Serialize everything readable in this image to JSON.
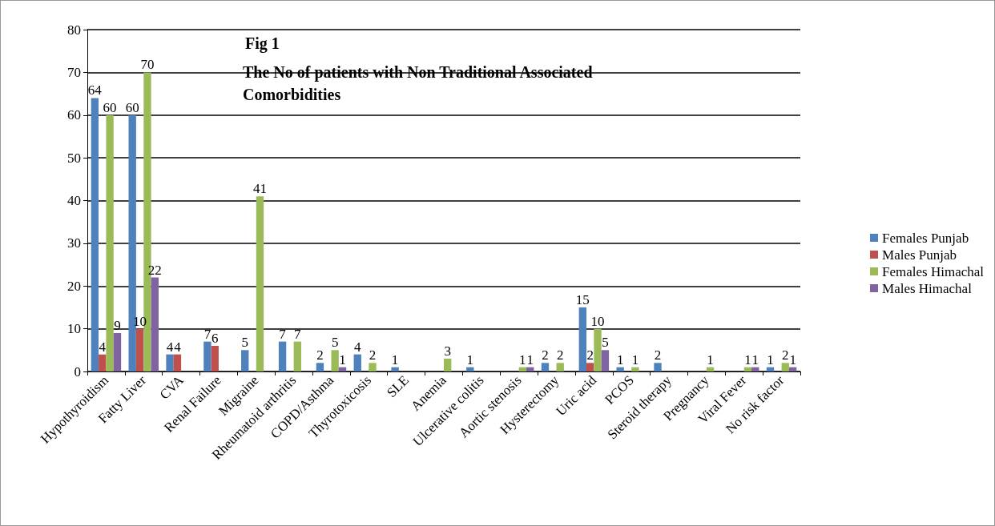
{
  "chart_data": {
    "type": "bar",
    "title": "Fig 1",
    "subtitle": "The No of patients with Non Traditional Associated Comorbidities",
    "categories": [
      "Hypothyroidism",
      "Fatty Liver",
      "CVA",
      "Renal Failure",
      "Migraine",
      "Rheumatoid arthritis",
      "COPD/Asthma",
      "Thyrotoxicosis",
      "SLE",
      "Anemia",
      "Ulcerative colitis",
      "Aortic stenosis",
      "Hysterectomy",
      "Uric acid",
      "PCOS",
      "Steroid therapy",
      "Pregnancy",
      "Viral Fever",
      "No risk factor"
    ],
    "series": [
      {
        "name": "Females Punjab",
        "color": "#4f81bd",
        "values": [
          64,
          60,
          4,
          7,
          5,
          7,
          2,
          4,
          1,
          null,
          1,
          null,
          2,
          15,
          1,
          2,
          null,
          null,
          1
        ]
      },
      {
        "name": "Males Punjab",
        "color": "#c0504d",
        "values": [
          4,
          10,
          4,
          6,
          null,
          null,
          null,
          null,
          null,
          null,
          null,
          null,
          null,
          2,
          null,
          null,
          null,
          null,
          null
        ]
      },
      {
        "name": "Females Himachal",
        "color": "#9bbb59",
        "values": [
          60,
          70,
          null,
          null,
          41,
          7,
          5,
          2,
          null,
          3,
          null,
          1,
          2,
          10,
          1,
          null,
          1,
          1,
          2
        ]
      },
      {
        "name": "Males Himachal",
        "color": "#8064a2",
        "values": [
          9,
          22,
          null,
          null,
          null,
          null,
          1,
          null,
          null,
          null,
          null,
          1,
          null,
          5,
          null,
          null,
          null,
          1,
          1
        ]
      }
    ],
    "ylim": [
      0,
      80
    ],
    "yticks": [
      0,
      10,
      20,
      30,
      40,
      50,
      60,
      70,
      80
    ],
    "grid": "y",
    "legend": "right",
    "data_labels": true
  }
}
